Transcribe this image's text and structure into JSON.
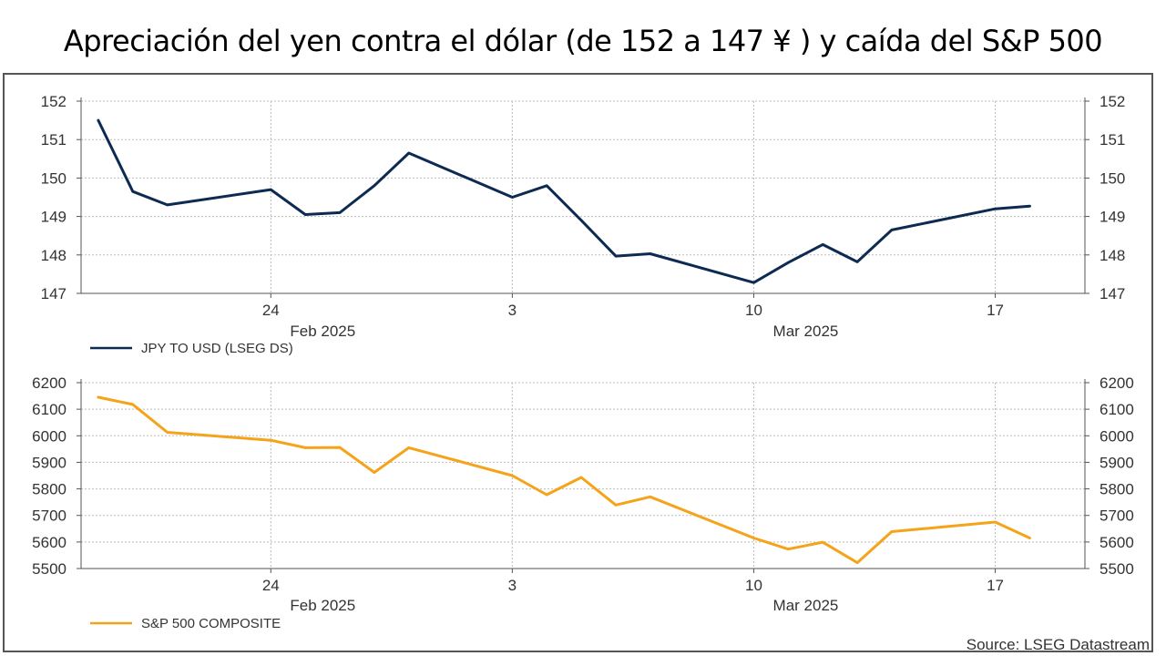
{
  "title": "Apreciación del yen contra el dólar (de 152 a 147 ¥ ) y caída del S&P 500",
  "source": "Source: LSEG Datastream",
  "chart_data": [
    {
      "type": "line",
      "series": [
        {
          "name": "JPY TO USD (LSEG DS)",
          "color": "#0d2b52",
          "x": [
            "2025-02-19",
            "2025-02-20",
            "2025-02-21",
            "2025-02-24",
            "2025-02-25",
            "2025-02-26",
            "2025-02-27",
            "2025-02-28",
            "2025-03-03",
            "2025-03-04",
            "2025-03-05",
            "2025-03-06",
            "2025-03-07",
            "2025-03-10",
            "2025-03-11",
            "2025-03-12",
            "2025-03-13",
            "2025-03-14",
            "2025-03-17",
            "2025-03-18"
          ],
          "values": [
            151.5,
            149.65,
            149.3,
            149.7,
            149.05,
            149.1,
            149.8,
            150.65,
            149.5,
            149.8,
            148.9,
            147.97,
            148.03,
            147.28,
            147.8,
            148.27,
            147.82,
            148.65,
            149.2,
            149.27
          ]
        }
      ],
      "ylim": [
        147,
        152
      ],
      "yticks": [
        "147",
        "148",
        "149",
        "150",
        "151",
        "152"
      ],
      "xticks": [
        {
          "date": "2025-02-24",
          "label": "24"
        },
        {
          "date": "2025-03-03",
          "label": "3"
        },
        {
          "date": "2025-03-10",
          "label": "10"
        },
        {
          "date": "2025-03-17",
          "label": "17"
        }
      ],
      "month_labels": [
        {
          "date": "2025-02-24",
          "label": "Feb 2025"
        },
        {
          "date": "2025-03-10",
          "label": "Mar 2025"
        }
      ],
      "grid": true,
      "legend": "bottom-left"
    },
    {
      "type": "line",
      "series": [
        {
          "name": "S&P 500 COMPOSITE",
          "color": "#f5a31a",
          "x": [
            "2025-02-19",
            "2025-02-20",
            "2025-02-21",
            "2025-02-24",
            "2025-02-25",
            "2025-02-26",
            "2025-02-27",
            "2025-02-28",
            "2025-03-03",
            "2025-03-04",
            "2025-03-05",
            "2025-03-06",
            "2025-03-07",
            "2025-03-10",
            "2025-03-11",
            "2025-03-12",
            "2025-03-13",
            "2025-03-14",
            "2025-03-17",
            "2025-03-18"
          ],
          "values": [
            6145,
            6118,
            6013,
            5983,
            5955,
            5956,
            5862,
            5955,
            5850,
            5778,
            5843,
            5739,
            5770,
            5615,
            5573,
            5599,
            5522,
            5639,
            5675,
            5615
          ]
        }
      ],
      "ylim": [
        5500,
        6200
      ],
      "yticks": [
        "5500",
        "5600",
        "5700",
        "5800",
        "5900",
        "6000",
        "6100",
        "6200"
      ],
      "xticks": [
        {
          "date": "2025-02-24",
          "label": "24"
        },
        {
          "date": "2025-03-03",
          "label": "3"
        },
        {
          "date": "2025-03-10",
          "label": "10"
        },
        {
          "date": "2025-03-17",
          "label": "17"
        }
      ],
      "month_labels": [
        {
          "date": "2025-02-24",
          "label": "Feb 2025"
        },
        {
          "date": "2025-03-10",
          "label": "Mar 2025"
        }
      ],
      "grid": true,
      "legend": "bottom-left"
    }
  ]
}
